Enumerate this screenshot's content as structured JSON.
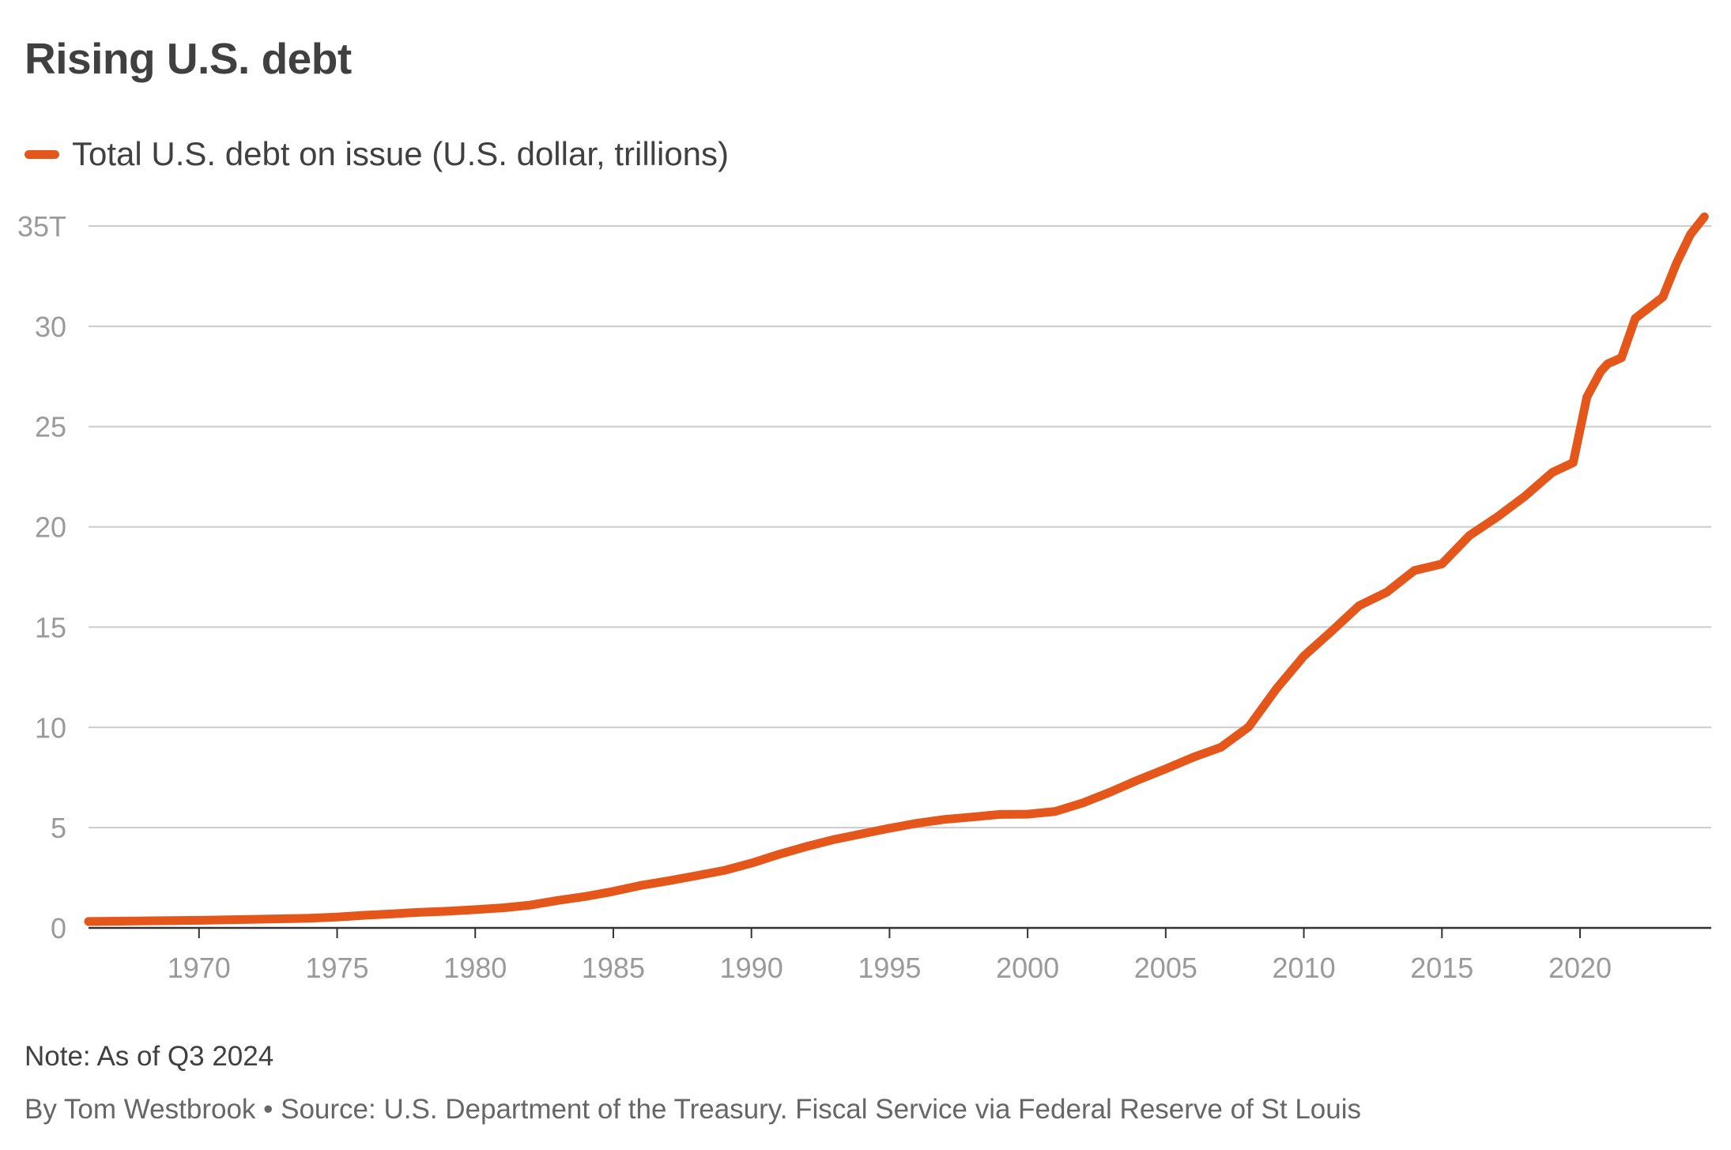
{
  "title": "Rising U.S. debt",
  "note": "Note: As of Q3 2024",
  "byline": "By Tom Westbrook • Source: U.S. Department of the Treasury. Fiscal Service via Federal Reserve of St Louis",
  "colors": {
    "line": "#e4561a",
    "grid": "#cccccc",
    "axis": "#333333",
    "tick": "#9a9a9a",
    "text": "#404040"
  },
  "chart_data": {
    "type": "line",
    "title": "Rising U.S. debt",
    "xlabel": "",
    "ylabel": "",
    "xlim": [
      1966,
      2024.75
    ],
    "ylim": [
      0,
      35
    ],
    "grid": true,
    "legend_position": "top-left",
    "x_ticks": [
      1970,
      1975,
      1980,
      1985,
      1990,
      1995,
      2000,
      2005,
      2010,
      2015,
      2020
    ],
    "x_tick_labels": [
      "1970",
      "1975",
      "1980",
      "1985",
      "1990",
      "1995",
      "2000",
      "2005",
      "2010",
      "2015",
      "2020"
    ],
    "y_ticks": [
      0,
      5,
      10,
      15,
      20,
      25,
      30,
      35
    ],
    "y_tick_labels": [
      "0",
      "5",
      "10",
      "15",
      "20",
      "25",
      "30",
      "35T"
    ],
    "series": [
      {
        "name": "Total U.S. debt on issue (U.S. dollar, trillions)",
        "points": [
          [
            1966.0,
            0.32
          ],
          [
            1968.0,
            0.35
          ],
          [
            1970.0,
            0.38
          ],
          [
            1972.0,
            0.43
          ],
          [
            1974.0,
            0.48
          ],
          [
            1975.0,
            0.54
          ],
          [
            1976.0,
            0.63
          ],
          [
            1977.0,
            0.7
          ],
          [
            1978.0,
            0.78
          ],
          [
            1979.0,
            0.83
          ],
          [
            1980.0,
            0.91
          ],
          [
            1981.0,
            1.0
          ],
          [
            1982.0,
            1.14
          ],
          [
            1983.0,
            1.37
          ],
          [
            1984.0,
            1.57
          ],
          [
            1985.0,
            1.82
          ],
          [
            1986.0,
            2.12
          ],
          [
            1987.0,
            2.35
          ],
          [
            1988.0,
            2.6
          ],
          [
            1989.0,
            2.86
          ],
          [
            1990.0,
            3.23
          ],
          [
            1991.0,
            3.67
          ],
          [
            1992.0,
            4.06
          ],
          [
            1993.0,
            4.41
          ],
          [
            1994.0,
            4.69
          ],
          [
            1995.0,
            4.97
          ],
          [
            1996.0,
            5.22
          ],
          [
            1997.0,
            5.41
          ],
          [
            1998.0,
            5.53
          ],
          [
            1999.0,
            5.66
          ],
          [
            2000.0,
            5.67
          ],
          [
            2001.0,
            5.81
          ],
          [
            2002.0,
            6.23
          ],
          [
            2003.0,
            6.78
          ],
          [
            2004.0,
            7.38
          ],
          [
            2005.0,
            7.93
          ],
          [
            2006.0,
            8.51
          ],
          [
            2007.0,
            9.01
          ],
          [
            2008.0,
            10.02
          ],
          [
            2009.0,
            11.91
          ],
          [
            2010.0,
            13.56
          ],
          [
            2011.0,
            14.79
          ],
          [
            2012.0,
            16.07
          ],
          [
            2013.0,
            16.74
          ],
          [
            2014.0,
            17.82
          ],
          [
            2015.0,
            18.15
          ],
          [
            2016.0,
            19.57
          ],
          [
            2017.0,
            20.49
          ],
          [
            2018.0,
            21.52
          ],
          [
            2019.0,
            22.72
          ],
          [
            2019.75,
            23.2
          ],
          [
            2020.25,
            26.48
          ],
          [
            2020.75,
            27.75
          ],
          [
            2021.0,
            28.13
          ],
          [
            2021.5,
            28.43
          ],
          [
            2022.0,
            30.4
          ],
          [
            2022.5,
            30.93
          ],
          [
            2023.0,
            31.46
          ],
          [
            2023.5,
            33.17
          ],
          [
            2024.0,
            34.59
          ],
          [
            2024.5,
            35.46
          ]
        ]
      }
    ]
  }
}
